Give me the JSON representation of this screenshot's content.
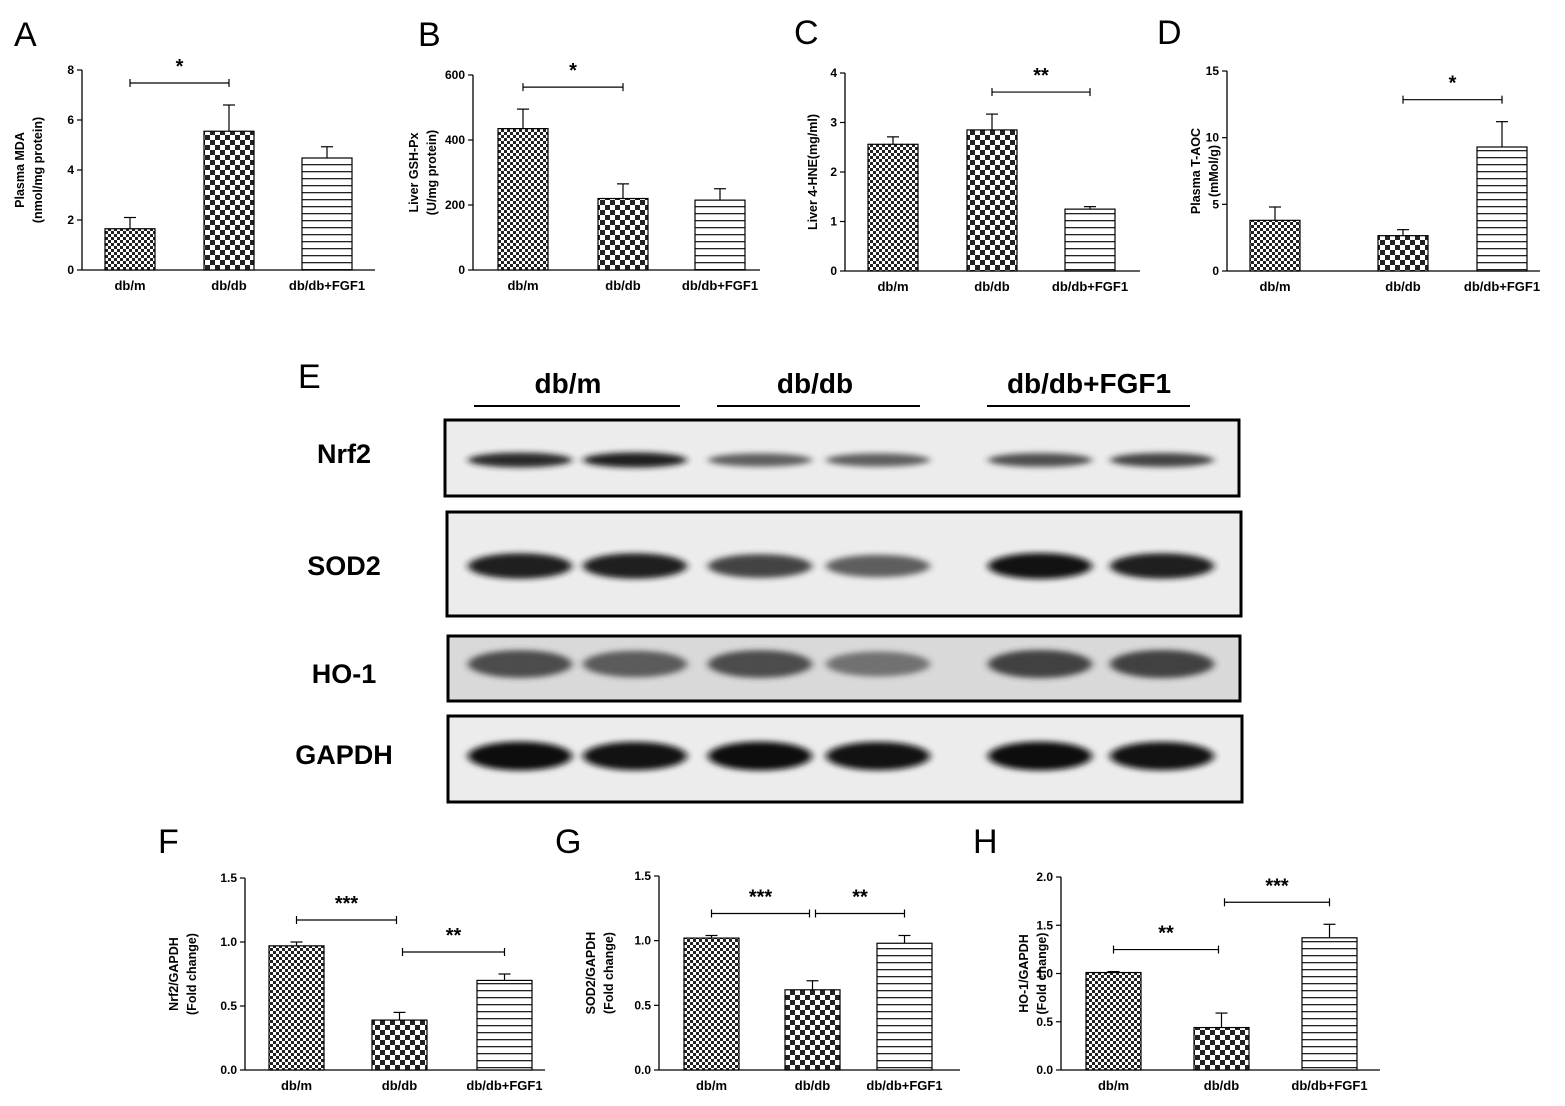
{
  "chart_data": [
    {
      "panel": "A",
      "type": "bar",
      "categories": [
        "db/m",
        "db/db",
        "db/db+FGF1"
      ],
      "values": [
        1.65,
        5.55,
        4.48
      ],
      "errors": [
        0.45,
        1.05,
        0.45
      ],
      "ylabel_lines": [
        "Plasma MDA",
        "(nmol/mg protein)"
      ],
      "ylim": [
        0,
        8
      ],
      "yticks": [
        "0",
        "2",
        "4",
        "6",
        "8"
      ],
      "significance": [
        {
          "from": 0,
          "to": 1,
          "label": "*"
        }
      ]
    },
    {
      "panel": "B",
      "type": "bar",
      "categories": [
        "db/m",
        "db/db",
        "db/db+FGF1"
      ],
      "values": [
        435,
        220,
        215
      ],
      "errors": [
        60,
        45,
        35
      ],
      "ylabel_lines": [
        "Liver GSH-Px",
        "(U/mg protein)"
      ],
      "ylim": [
        0,
        600
      ],
      "yticks": [
        "0",
        "200",
        "400",
        "600"
      ],
      "significance": [
        {
          "from": 0,
          "to": 1,
          "label": "*"
        }
      ]
    },
    {
      "panel": "C",
      "type": "bar",
      "categories": [
        "db/m",
        "db/db",
        "db/db+FGF1"
      ],
      "values": [
        2.56,
        2.85,
        1.25
      ],
      "errors": [
        0.15,
        0.32,
        0.05
      ],
      "ylabel_lines": [
        "Liver 4-HNE(mg/ml)"
      ],
      "ylim": [
        0,
        4
      ],
      "yticks": [
        "0",
        "1",
        "2",
        "3",
        "4"
      ],
      "significance": [
        {
          "from": 1,
          "to": 2,
          "label": "**"
        }
      ]
    },
    {
      "panel": "D",
      "type": "bar",
      "categories": [
        "db/m",
        "db/db",
        "db/db+FGF1"
      ],
      "values": [
        3.8,
        2.65,
        9.3
      ],
      "errors": [
        1.0,
        0.45,
        1.9
      ],
      "ylabel_lines": [
        "Plasma T-AOC",
        "(mMol/g)"
      ],
      "ylim": [
        0,
        15
      ],
      "yticks": [
        "0",
        "5",
        "10",
        "15"
      ],
      "significance": [
        {
          "from": 1,
          "to": 2,
          "label": "*"
        }
      ]
    },
    {
      "panel": "F",
      "type": "bar",
      "categories": [
        "db/m",
        "db/db",
        "db/db+FGF1"
      ],
      "values": [
        0.97,
        0.39,
        0.7
      ],
      "errors": [
        0.03,
        0.06,
        0.05
      ],
      "ylabel_lines": [
        "Nrf2/GAPDH",
        "(Fold change)"
      ],
      "ylim": [
        0,
        1.5
      ],
      "yticks": [
        "0.0",
        "0.5",
        "1.0",
        "1.5"
      ],
      "significance": [
        {
          "from": 0,
          "to": 1,
          "label": "***"
        },
        {
          "from": 1,
          "to": 2,
          "label": "**"
        }
      ]
    },
    {
      "panel": "G",
      "type": "bar",
      "categories": [
        "db/m",
        "db/db",
        "db/db+FGF1"
      ],
      "values": [
        1.02,
        0.62,
        0.98
      ],
      "errors": [
        0.02,
        0.07,
        0.06
      ],
      "ylabel_lines": [
        "SOD2/GAPDH",
        "(Fold change)"
      ],
      "ylim": [
        0,
        1.5
      ],
      "yticks": [
        "0.0",
        "0.5",
        "1.0",
        "1.5"
      ],
      "significance": [
        {
          "from": 0,
          "to": 1,
          "label": "***"
        },
        {
          "from": 1,
          "to": 2,
          "label": "**"
        }
      ]
    },
    {
      "panel": "H",
      "type": "bar",
      "categories": [
        "db/m",
        "db/db",
        "db/db+FGF1"
      ],
      "values": [
        1.01,
        0.44,
        1.37
      ],
      "errors": [
        0.01,
        0.15,
        0.14
      ],
      "ylabel_lines": [
        "HO-1/GAPDH",
        "(Fold change)"
      ],
      "ylim": [
        0,
        2.0
      ],
      "yticks": [
        "0.0",
        "0.5",
        "1.0",
        "1.5",
        "2.0"
      ],
      "significance": [
        {
          "from": 0,
          "to": 1,
          "label": "**"
        },
        {
          "from": 1,
          "to": 2,
          "label": "***"
        }
      ]
    }
  ],
  "blot": {
    "panel": "E",
    "groups": [
      "db/m",
      "db/db",
      "db/db+FGF1"
    ],
    "rows": [
      {
        "name": "Nrf2",
        "intensity": [
          0.85,
          0.9,
          0.55,
          0.55,
          0.65,
          0.7
        ]
      },
      {
        "name": "SOD2",
        "intensity": [
          0.9,
          0.9,
          0.7,
          0.55,
          0.95,
          0.9
        ]
      },
      {
        "name": "HO-1",
        "intensity": [
          0.65,
          0.55,
          0.65,
          0.4,
          0.7,
          0.7
        ]
      },
      {
        "name": "GAPDH",
        "intensity": [
          1.0,
          0.95,
          1.0,
          0.95,
          1.0,
          0.95
        ]
      }
    ]
  }
}
